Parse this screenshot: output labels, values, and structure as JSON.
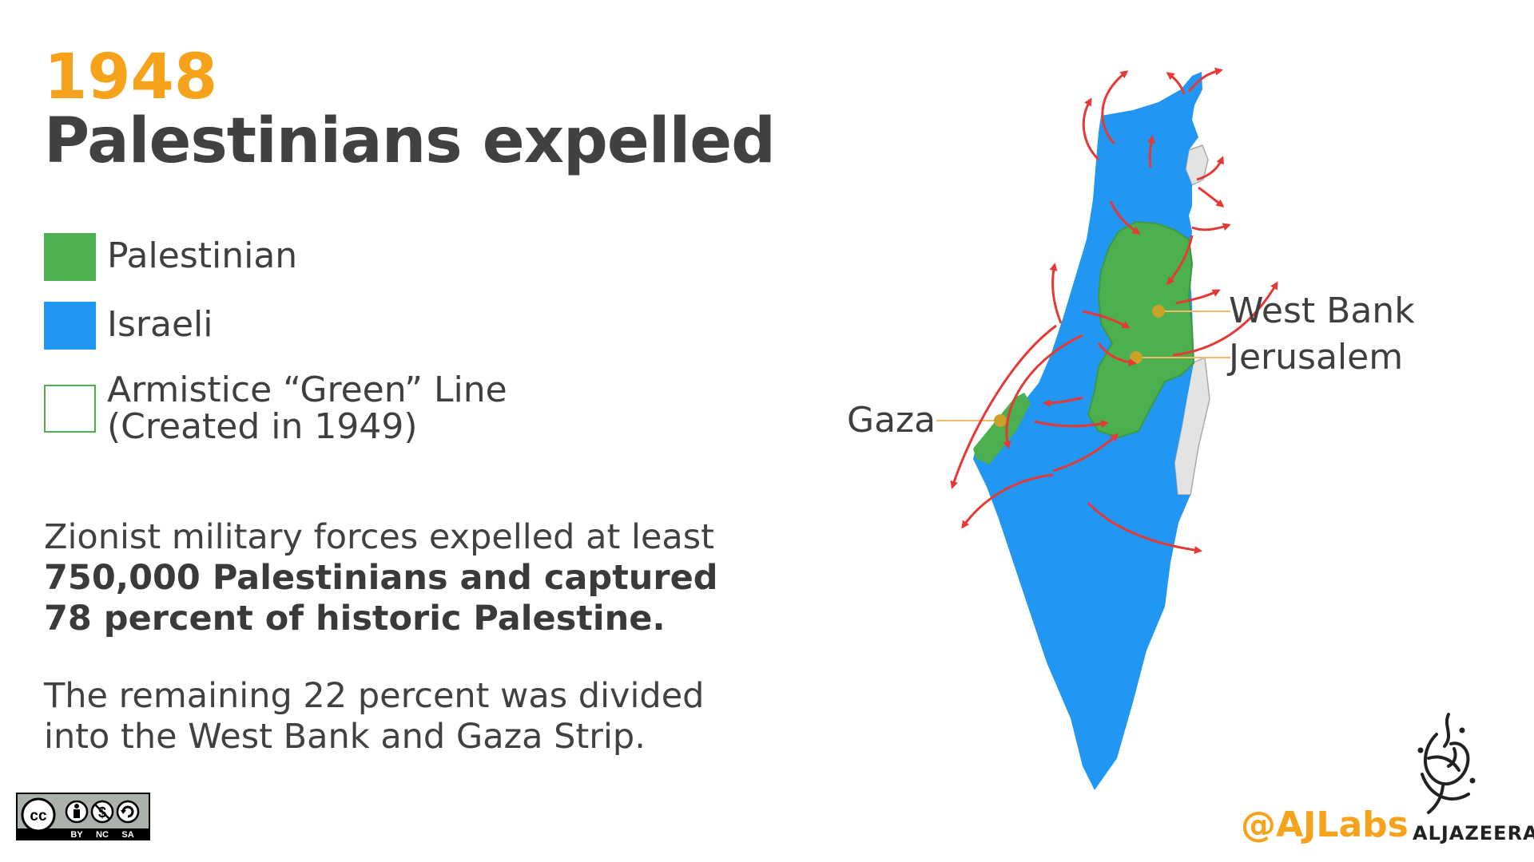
{
  "header": {
    "year": "1948",
    "title": "Palestinians expelled"
  },
  "legend": {
    "items": [
      {
        "label": "Palestinian",
        "color": "#4caf50",
        "style": "filled"
      },
      {
        "label": "Israeli",
        "color": "#2196f3",
        "style": "filled"
      },
      {
        "label_line1": "Armistice “Green” Line",
        "label_line2": "(Created in 1949)",
        "color": "#4caf50",
        "style": "outline"
      }
    ]
  },
  "body": {
    "para1_text": "Zionist military forces expelled at least ",
    "para1_bold": "750,000 Palestinians and captured 78 percent of historic Palestine.",
    "para2": "The remaining 22 percent was divided into the West Bank and Gaza Strip."
  },
  "map": {
    "labels": {
      "west_bank": "West Bank",
      "jerusalem": "Jerusalem",
      "gaza": "Gaza"
    },
    "colors": {
      "israeli": "#2196f3",
      "palestinian": "#4caf50",
      "arrows": "#e53935",
      "leader_lines": "#f7b866",
      "markers": "#c9a227",
      "neighbors": "#e0e0e0"
    },
    "icons": [
      "expulsion-arrow-icon"
    ]
  },
  "footer": {
    "license": {
      "cc": "cc",
      "by": "BY",
      "nc": "NC",
      "sa": "SA"
    },
    "credit": "@AJLabs",
    "brand": "ALJAZEERA"
  }
}
